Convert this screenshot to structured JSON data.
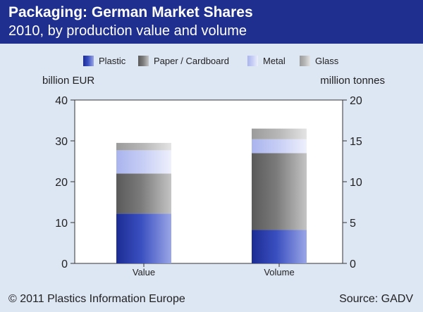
{
  "header": {
    "title": "Packaging: German Market Shares",
    "subtitle": "2010, by production value and volume"
  },
  "footer": {
    "copyright": "© 2011 Plastics Information Europe",
    "source": "Source: GADV"
  },
  "colors": {
    "header_bg": "#1f2f8f",
    "background": "#dde6f3",
    "plastic": "#2a3ea8",
    "paper": "#7a7a7a",
    "metal": "#b9c2f0",
    "glass": "#b5b5b5"
  },
  "chart_data": {
    "type": "bar",
    "stacked": true,
    "categories": [
      "Value",
      "Volume"
    ],
    "series": [
      {
        "name": "Plastic",
        "values": [
          12.2,
          4.1
        ]
      },
      {
        "name": "Paper / Cardboard",
        "values": [
          9.8,
          9.4
        ]
      },
      {
        "name": "Metal",
        "values": [
          5.7,
          1.7
        ]
      },
      {
        "name": "Glass",
        "values": [
          1.8,
          1.3
        ]
      }
    ],
    "ylabel_left": "billion EUR",
    "ylabel_right": "million tonnes",
    "ylim_left": [
      0,
      40
    ],
    "ylim_right": [
      0,
      20
    ],
    "yticks_left": [
      0,
      10,
      20,
      30,
      40
    ],
    "yticks_right": [
      0,
      5,
      10,
      15,
      20
    ],
    "legend_position": "top",
    "grid": false
  }
}
